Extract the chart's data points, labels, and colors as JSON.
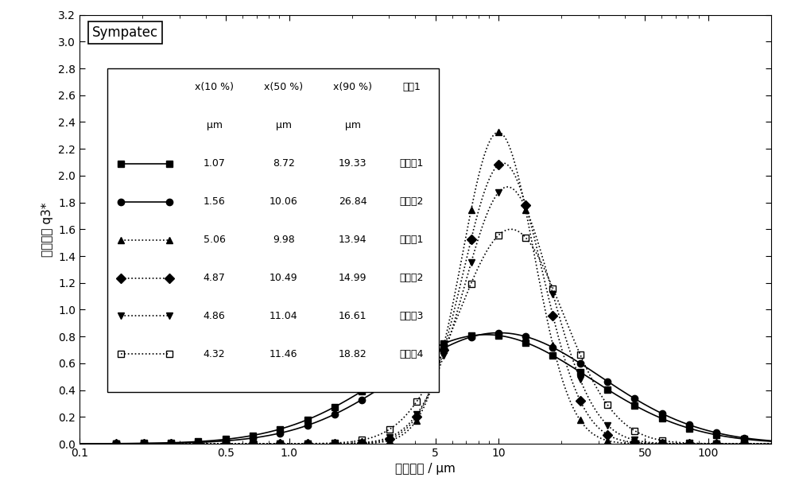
{
  "title": "Sympatec",
  "xlabel": "颗粒尺寸 / μm",
  "ylabel": "频率分布 q3*",
  "xlim": [
    0.1,
    200
  ],
  "ylim": [
    0.0,
    3.2
  ],
  "yticks": [
    0.0,
    0.2,
    0.4,
    0.6,
    0.8,
    1.0,
    1.2,
    1.4,
    1.6,
    1.8,
    2.0,
    2.2,
    2.4,
    2.6,
    2.8,
    3.0,
    3.2
  ],
  "series": [
    {
      "label": "参考例1",
      "x10": 1.07,
      "x50": 8.72,
      "x90": 19.33,
      "marker": "s",
      "fillstyle": "full",
      "color": "#000000",
      "linestyle": "-"
    },
    {
      "label": "参考例2",
      "x10": 1.56,
      "x50": 10.06,
      "x90": 26.84,
      "marker": "o",
      "fillstyle": "full",
      "color": "#000000",
      "linestyle": "-"
    },
    {
      "label": "实施例1",
      "x10": 5.06,
      "x50": 9.98,
      "x90": 13.94,
      "marker": "^",
      "fillstyle": "full",
      "color": "#000000",
      "linestyle": ":"
    },
    {
      "label": "实施例2",
      "x10": 4.87,
      "x50": 10.49,
      "x90": 14.99,
      "marker": "D",
      "fillstyle": "full",
      "color": "#000000",
      "linestyle": ":"
    },
    {
      "label": "实施例3",
      "x10": 4.86,
      "x50": 11.04,
      "x90": 16.61,
      "marker": "v",
      "fillstyle": "full",
      "color": "#000000",
      "linestyle": ":"
    },
    {
      "label": "实施例4",
      "x10": 4.32,
      "x50": 11.46,
      "x90": 18.82,
      "marker": "s",
      "fillstyle": "none",
      "color": "#000000",
      "linestyle": ":"
    }
  ],
  "major_xticks": [
    0.1,
    0.5,
    1.0,
    5,
    10,
    50,
    100
  ],
  "major_xlabels": [
    "0.1",
    "0.5",
    "1.0",
    "5",
    "10",
    "50",
    "100"
  ],
  "background_color": "#ffffff"
}
